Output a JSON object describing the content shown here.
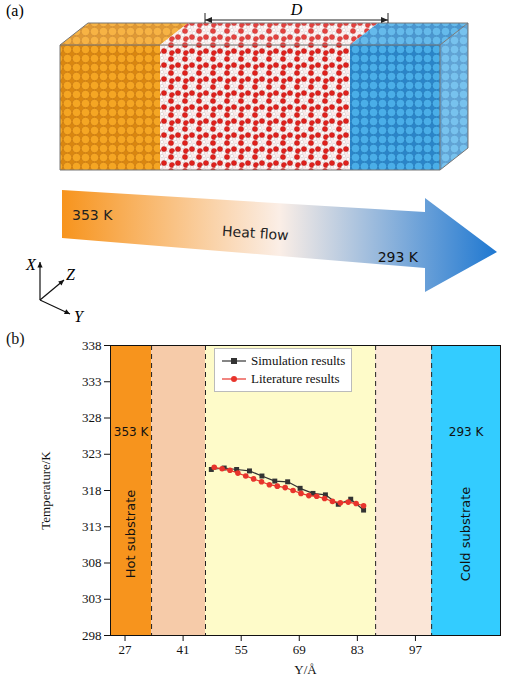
{
  "diagram": {
    "label": "(a)",
    "dimension_label": "D",
    "axis_labels": {
      "x": "X",
      "z": "Z",
      "y": "Y"
    },
    "arrow_label": "Heat flow",
    "hot_label": "353 K",
    "cold_label": "293 K"
  },
  "chart_data": {
    "type": "line",
    "label": "(b)",
    "x_label": "Y/Å",
    "y_label": "Temperature/K",
    "xlim": [
      23.5,
      117.5
    ],
    "xticks": [
      27,
      41,
      55,
      69,
      83,
      97
    ],
    "ylim": [
      298,
      338
    ],
    "yticks": [
      298,
      303,
      308,
      313,
      318,
      323,
      328,
      333,
      338
    ],
    "legend": "top",
    "regions": [
      {
        "x1": 23.5,
        "x2": 33.4,
        "color": "#f7941d",
        "label": "Hot substrate",
        "temperature_label": "353 K"
      },
      {
        "x1": 33.4,
        "x2": 46.4,
        "color": "#f6cba9"
      },
      {
        "x1": 46.4,
        "x2": 87.4,
        "color": "#fefbc9"
      },
      {
        "x1": 87.4,
        "x2": 100.9,
        "color": "#fbe6d7"
      },
      {
        "x1": 100.9,
        "x2": 117.5,
        "color": "#33ccff",
        "label": "Cold substrate",
        "temperature_label": "293 K"
      }
    ],
    "series": [
      {
        "name": "Simulation results",
        "color": "#333333",
        "marker": "square",
        "x": [
          47.8,
          50.9,
          53.9,
          57.0,
          60.0,
          63.1,
          66.2,
          69.2,
          72.3,
          75.3,
          78.4,
          81.4,
          84.5
        ],
        "values": [
          320.9,
          321.1,
          320.9,
          320.7,
          320.0,
          319.3,
          319.2,
          318.3,
          317.6,
          317.4,
          316.1,
          316.8,
          315.3
        ]
      },
      {
        "name": "Literature results",
        "color": "#e8342c",
        "marker": "circle",
        "x": [
          48.5,
          50.4,
          52.3,
          54.2,
          56.1,
          58.0,
          59.9,
          61.8,
          63.7,
          65.6,
          67.5,
          69.4,
          71.3,
          73.2,
          75.1,
          77.0,
          78.9,
          80.8,
          82.7,
          84.5
        ],
        "values": [
          321.2,
          321.0,
          320.8,
          320.4,
          320.0,
          319.6,
          319.2,
          318.8,
          318.6,
          318.4,
          318.0,
          317.6,
          317.3,
          317.2,
          316.9,
          316.5,
          316.3,
          316.4,
          316.2,
          315.9
        ]
      }
    ]
  }
}
